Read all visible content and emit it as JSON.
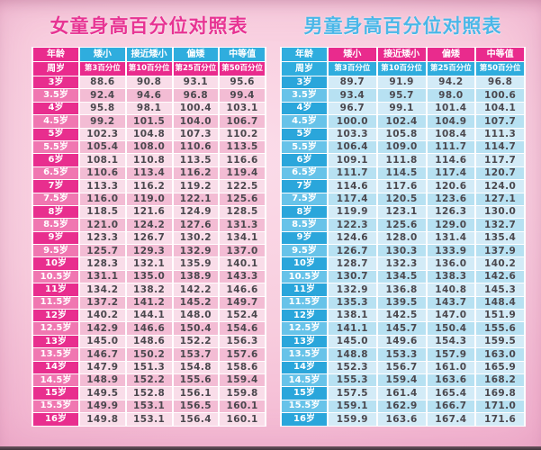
{
  "colors": {
    "girls_title": "#e73493",
    "boys_title": "#4ab7e8",
    "pink_accent": "#e92b8d",
    "blue_accent": "#2fadde",
    "girls_row_light": "#f9dde9",
    "girls_row_dark": "#f3bcd4",
    "boys_row_light": "#d3ebf7",
    "boys_row_dark": "#b7e1f2",
    "background_pink": "#f3b6d1",
    "value_text": "#4b484e"
  },
  "chart_data": [
    {
      "type": "table",
      "title": "女童身高百分位对照表",
      "columns_top": [
        "年龄",
        "矮小",
        "接近矮小",
        "偏矮",
        "中等值"
      ],
      "columns_sub": [
        "周岁",
        "第3百分位",
        "第10百分位",
        "第25百分位",
        "第50百分位"
      ],
      "rows": [
        [
          "3岁",
          "88.6",
          "90.8",
          "93.1",
          "95.6"
        ],
        [
          "3.5岁",
          "92.4",
          "94.6",
          "96.8",
          "99.4"
        ],
        [
          "4岁",
          "95.8",
          "98.1",
          "100.4",
          "103.1"
        ],
        [
          "4.5岁",
          "99.2",
          "101.5",
          "104.0",
          "106.7"
        ],
        [
          "5岁",
          "102.3",
          "104.8",
          "107.3",
          "110.2"
        ],
        [
          "5.5岁",
          "105.4",
          "108.0",
          "110.6",
          "113.5"
        ],
        [
          "6岁",
          "108.1",
          "110.8",
          "113.5",
          "116.6"
        ],
        [
          "6.5岁",
          "110.6",
          "113.4",
          "116.2",
          "119.4"
        ],
        [
          "7岁",
          "113.3",
          "116.2",
          "119.2",
          "122.5"
        ],
        [
          "7.5岁",
          "116.0",
          "119.0",
          "122.1",
          "125.6"
        ],
        [
          "8岁",
          "118.5",
          "121.6",
          "124.9",
          "128.5"
        ],
        [
          "8.5岁",
          "121.0",
          "124.2",
          "127.6",
          "131.3"
        ],
        [
          "9岁",
          "123.3",
          "126.7",
          "130.2",
          "134.1"
        ],
        [
          "9.5岁",
          "125.7",
          "129.3",
          "132.9",
          "137.0"
        ],
        [
          "10岁",
          "128.3",
          "132.1",
          "135.9",
          "140.1"
        ],
        [
          "10.5岁",
          "131.1",
          "135.0",
          "138.9",
          "143.3"
        ],
        [
          "11岁",
          "134.2",
          "138.2",
          "142.2",
          "146.6"
        ],
        [
          "11.5岁",
          "137.2",
          "141.2",
          "145.2",
          "149.7"
        ],
        [
          "12岁",
          "140.2",
          "144.1",
          "148.0",
          "152.4"
        ],
        [
          "12.5岁",
          "142.9",
          "146.6",
          "150.4",
          "154.6"
        ],
        [
          "13岁",
          "145.0",
          "148.6",
          "152.2",
          "156.3"
        ],
        [
          "13.5岁",
          "146.7",
          "150.2",
          "153.7",
          "157.6"
        ],
        [
          "14岁",
          "147.9",
          "151.3",
          "154.8",
          "158.6"
        ],
        [
          "14.5岁",
          "148.9",
          "152.2",
          "155.6",
          "159.4"
        ],
        [
          "15岁",
          "149.5",
          "152.8",
          "156.1",
          "159.8"
        ],
        [
          "15.5岁",
          "149.9",
          "153.1",
          "156.5",
          "160.1"
        ],
        [
          "16岁",
          "149.8",
          "153.1",
          "156.4",
          "160.1"
        ]
      ]
    },
    {
      "type": "table",
      "title": "男童身高百分位对照表",
      "columns_top": [
        "年龄",
        "矮小",
        "接近矮小",
        "偏矮",
        "中等值"
      ],
      "columns_sub": [
        "周岁",
        "第3百分位",
        "第10百分位",
        "第25百分位",
        "第50百分位"
      ],
      "rows": [
        [
          "3岁",
          "89.7",
          "91.9",
          "94.2",
          "96.8"
        ],
        [
          "3.5岁",
          "93.4",
          "95.7",
          "98.0",
          "100.6"
        ],
        [
          "4岁",
          "96.7",
          "99.1",
          "101.4",
          "104.1"
        ],
        [
          "4.5岁",
          "100.0",
          "102.4",
          "104.9",
          "107.7"
        ],
        [
          "5岁",
          "103.3",
          "105.8",
          "108.4",
          "111.3"
        ],
        [
          "5.5岁",
          "106.4",
          "109.0",
          "111.7",
          "114.7"
        ],
        [
          "6岁",
          "109.1",
          "111.8",
          "114.6",
          "117.7"
        ],
        [
          "6.5岁",
          "111.7",
          "114.5",
          "117.4",
          "120.7"
        ],
        [
          "7岁",
          "114.6",
          "117.6",
          "120.6",
          "124.0"
        ],
        [
          "7.5岁",
          "117.4",
          "120.5",
          "123.6",
          "127.1"
        ],
        [
          "8岁",
          "119.9",
          "123.1",
          "126.3",
          "130.0"
        ],
        [
          "8.5岁",
          "122.3",
          "125.6",
          "129.0",
          "132.7"
        ],
        [
          "9岁",
          "124.6",
          "128.0",
          "131.4",
          "135.4"
        ],
        [
          "9.5岁",
          "126.7",
          "130.3",
          "133.9",
          "137.9"
        ],
        [
          "10岁",
          "128.7",
          "132.3",
          "136.0",
          "140.2"
        ],
        [
          "10.5岁",
          "130.7",
          "134.5",
          "138.3",
          "142.6"
        ],
        [
          "11岁",
          "132.9",
          "136.8",
          "140.8",
          "145.3"
        ],
        [
          "11.5岁",
          "135.3",
          "139.5",
          "143.7",
          "148.4"
        ],
        [
          "12岁",
          "138.1",
          "142.5",
          "147.0",
          "151.9"
        ],
        [
          "12.5岁",
          "141.1",
          "145.7",
          "150.4",
          "155.6"
        ],
        [
          "13岁",
          "145.0",
          "149.6",
          "154.3",
          "159.5"
        ],
        [
          "13.5岁",
          "148.8",
          "153.3",
          "157.9",
          "163.0"
        ],
        [
          "14岁",
          "152.3",
          "156.7",
          "161.0",
          "165.9"
        ],
        [
          "14.5岁",
          "155.3",
          "159.4",
          "163.6",
          "168.2"
        ],
        [
          "15岁",
          "157.5",
          "161.4",
          "165.4",
          "169.8"
        ],
        [
          "15.5岁",
          "159.1",
          "162.9",
          "166.7",
          "171.0"
        ],
        [
          "16岁",
          "159.9",
          "163.6",
          "167.4",
          "171.6"
        ]
      ]
    }
  ]
}
